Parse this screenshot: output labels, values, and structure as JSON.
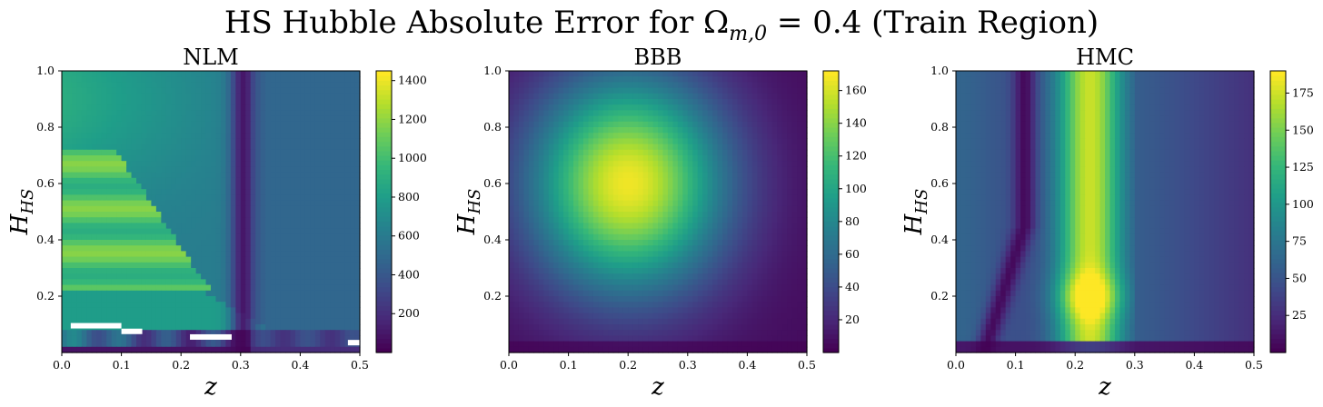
{
  "figure": {
    "title": "HS Hubble Absolute Error for Ω",
    "title_sub": "m,0",
    "title_tail": " = 0.4 (Train Region)"
  },
  "colormap": "viridis",
  "chart_data": [
    {
      "type": "heatmap",
      "title": "NLM",
      "xlabel": "z",
      "ylabel": "H",
      "ylabel_sub": "HS",
      "xlim": [
        0.0,
        0.5
      ],
      "ylim": [
        0.0,
        1.0
      ],
      "xticks": [
        "0.0",
        "0.1",
        "0.2",
        "0.3",
        "0.4",
        "0.5"
      ],
      "yticks": [
        "0.2",
        "0.4",
        "0.6",
        "0.8",
        "1.0"
      ],
      "colorbar": {
        "min": 0,
        "max": 1450,
        "ticks": [
          "200",
          "400",
          "600",
          "800",
          "1000",
          "1200",
          "1400"
        ]
      },
      "description_values": {
        "min_error_at_z": 0.3,
        "high_error_region": "low z, H_HS 0.3–0.7"
      }
    },
    {
      "type": "heatmap",
      "title": "BBB",
      "xlabel": "z",
      "ylabel": "H",
      "ylabel_sub": "HS",
      "xlim": [
        0.0,
        0.5
      ],
      "ylim": [
        0.0,
        1.0
      ],
      "xticks": [
        "0.0",
        "0.1",
        "0.2",
        "0.3",
        "0.4",
        "0.5"
      ],
      "yticks": [
        "0.2",
        "0.4",
        "0.6",
        "0.8",
        "1.0"
      ],
      "colorbar": {
        "min": 0,
        "max": 172,
        "ticks": [
          "20",
          "40",
          "60",
          "80",
          "100",
          "120",
          "140",
          "160"
        ]
      },
      "peak": {
        "z": 0.2,
        "H_HS": 0.6,
        "value": 170
      }
    },
    {
      "type": "heatmap",
      "title": "HMC",
      "xlabel": "z",
      "ylabel": "H",
      "ylabel_sub": "HS",
      "xlim": [
        0.0,
        0.5
      ],
      "ylim": [
        0.0,
        1.0
      ],
      "xticks": [
        "0.0",
        "0.1",
        "0.2",
        "0.3",
        "0.4",
        "0.5"
      ],
      "yticks": [
        "0.2",
        "0.4",
        "0.6",
        "0.8",
        "1.0"
      ],
      "colorbar": {
        "min": 0,
        "max": 190,
        "ticks": [
          "25",
          "50",
          "75",
          "100",
          "125",
          "150",
          "175"
        ]
      },
      "peak": {
        "z": 0.22,
        "H_HS": 0.2,
        "value": 188
      }
    }
  ]
}
